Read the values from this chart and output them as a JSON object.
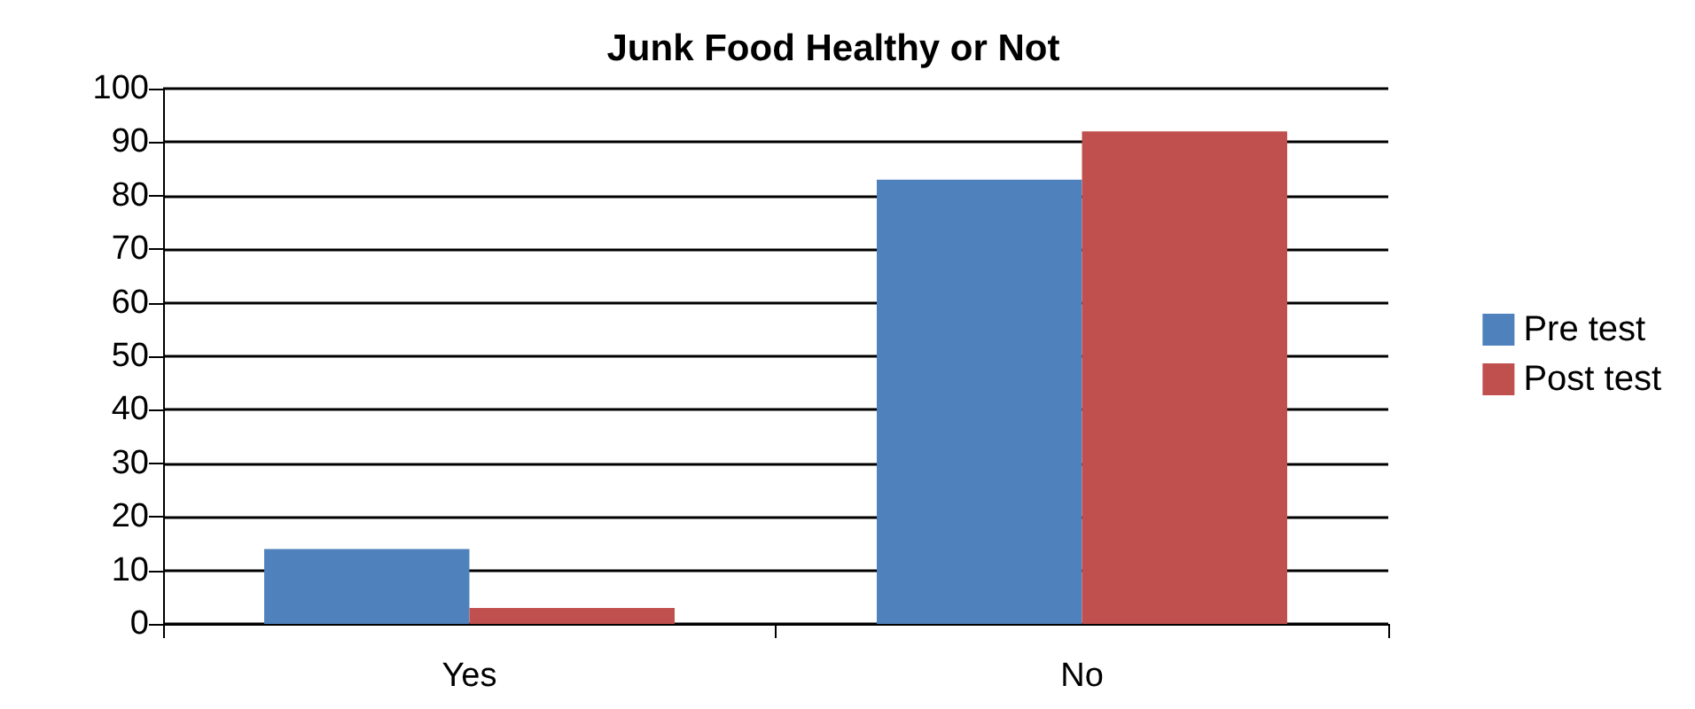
{
  "chart_data": {
    "type": "bar",
    "title": "Junk Food Healthy or Not",
    "categories": [
      "Yes",
      "No"
    ],
    "series": [
      {
        "name": "Pre test",
        "color": "#4f81bd",
        "values": [
          14,
          83
        ]
      },
      {
        "name": "Post test",
        "color": "#c0504d",
        "values": [
          3,
          92
        ]
      }
    ],
    "ylim": [
      0,
      100
    ],
    "yticks": [
      0,
      10,
      20,
      30,
      40,
      50,
      60,
      70,
      80,
      90,
      100
    ],
    "grid": "y",
    "legend": "right"
  }
}
